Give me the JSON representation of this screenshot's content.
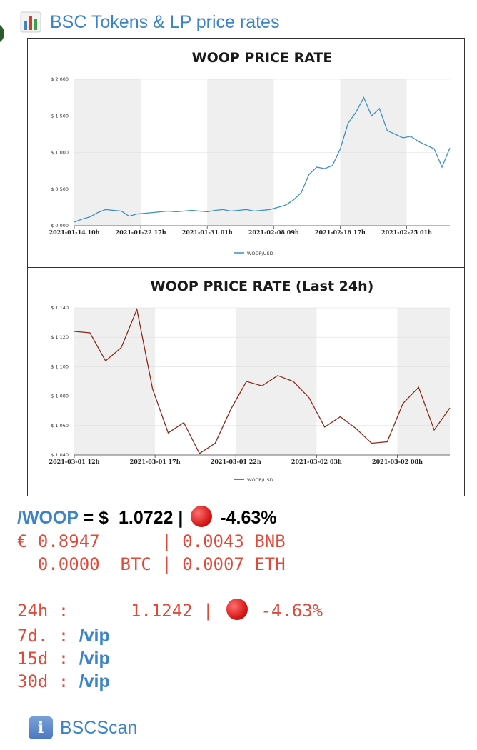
{
  "header": {
    "title": "BSC Tokens & LP price rates",
    "icon": "bar-chart-icon"
  },
  "chart_data": [
    {
      "type": "line",
      "title": "WOOP PRICE RATE",
      "legend": "WOOP/USD",
      "color": "#3a8fc6",
      "x_ticks": [
        "2021-01-14 10h",
        "2021-01-22 17h",
        "2021-01-31 01h",
        "2021-02-08 09h",
        "2021-02-16 17h",
        "2021-02-25 01h"
      ],
      "y_ticks": [
        "$ 0,000",
        "$ 0,500",
        "$ 1,000",
        "$ 1,500",
        "$ 2,000"
      ],
      "ylim": [
        0,
        2.0
      ],
      "x": [
        0,
        1,
        2,
        3,
        4,
        5,
        6,
        7,
        8,
        9,
        10,
        11,
        12,
        13,
        14,
        15,
        16,
        17,
        18,
        19,
        20,
        21,
        22,
        23,
        24,
        25,
        26,
        27,
        28,
        29,
        30,
        31,
        32,
        33,
        34,
        35,
        36,
        37,
        38,
        39,
        40,
        41,
        42,
        43,
        44,
        45,
        46,
        47,
        48
      ],
      "values": [
        0.05,
        0.09,
        0.12,
        0.18,
        0.22,
        0.21,
        0.2,
        0.13,
        0.16,
        0.17,
        0.18,
        0.19,
        0.2,
        0.19,
        0.2,
        0.21,
        0.2,
        0.19,
        0.21,
        0.22,
        0.2,
        0.21,
        0.22,
        0.2,
        0.21,
        0.22,
        0.25,
        0.28,
        0.35,
        0.45,
        0.7,
        0.8,
        0.78,
        0.82,
        1.05,
        1.4,
        1.55,
        1.75,
        1.5,
        1.6,
        1.3,
        1.25,
        1.2,
        1.22,
        1.15,
        1.1,
        1.05,
        0.8,
        1.06
      ]
    },
    {
      "type": "line",
      "title": "WOOP PRICE RATE (Last 24h)",
      "legend": "WOOP/USD",
      "color": "#8b2a1a",
      "x_ticks": [
        "2021-03-01 12h",
        "2021-03-01 17h",
        "2021-03-01 22h",
        "2021-03-02 03h",
        "2021-03-02 08h"
      ],
      "y_ticks": [
        "$ 1,040",
        "$ 1,060",
        "$ 1,080",
        "$ 1,100",
        "$ 1,120",
        "$ 1,140"
      ],
      "ylim": [
        1.04,
        1.14
      ],
      "x": [
        0,
        1,
        2,
        3,
        4,
        5,
        6,
        7,
        8,
        9,
        10,
        11,
        12,
        13,
        14,
        15,
        16,
        17,
        18,
        19,
        20,
        21,
        22,
        23,
        24
      ],
      "values": [
        1.124,
        1.123,
        1.104,
        1.113,
        1.139,
        1.085,
        1.055,
        1.062,
        1.041,
        1.048,
        1.071,
        1.09,
        1.087,
        1.094,
        1.09,
        1.079,
        1.059,
        1.066,
        1.058,
        1.048,
        1.049,
        1.075,
        1.086,
        1.057,
        1.072
      ]
    }
  ],
  "price": {
    "symbol": "/WOOP",
    "eq": " = $  ",
    "usd": "1.0722 | ",
    "change": " -4.63%",
    "line2": "€ 0.8947      | 0.0043 BNB",
    "line3": "  0.0000  BTC | 0.0007 ETH"
  },
  "history": {
    "h24_label": "24h :      1.1242 | ",
    "h24_change": " -4.63%",
    "d7_label": "7d. : ",
    "d15_label": "15d : ",
    "d30_label": "30d : ",
    "vip": "/vip"
  },
  "footer": {
    "link": "BSCScan",
    "icon": "info-icon",
    "icon_glyph": "i"
  }
}
